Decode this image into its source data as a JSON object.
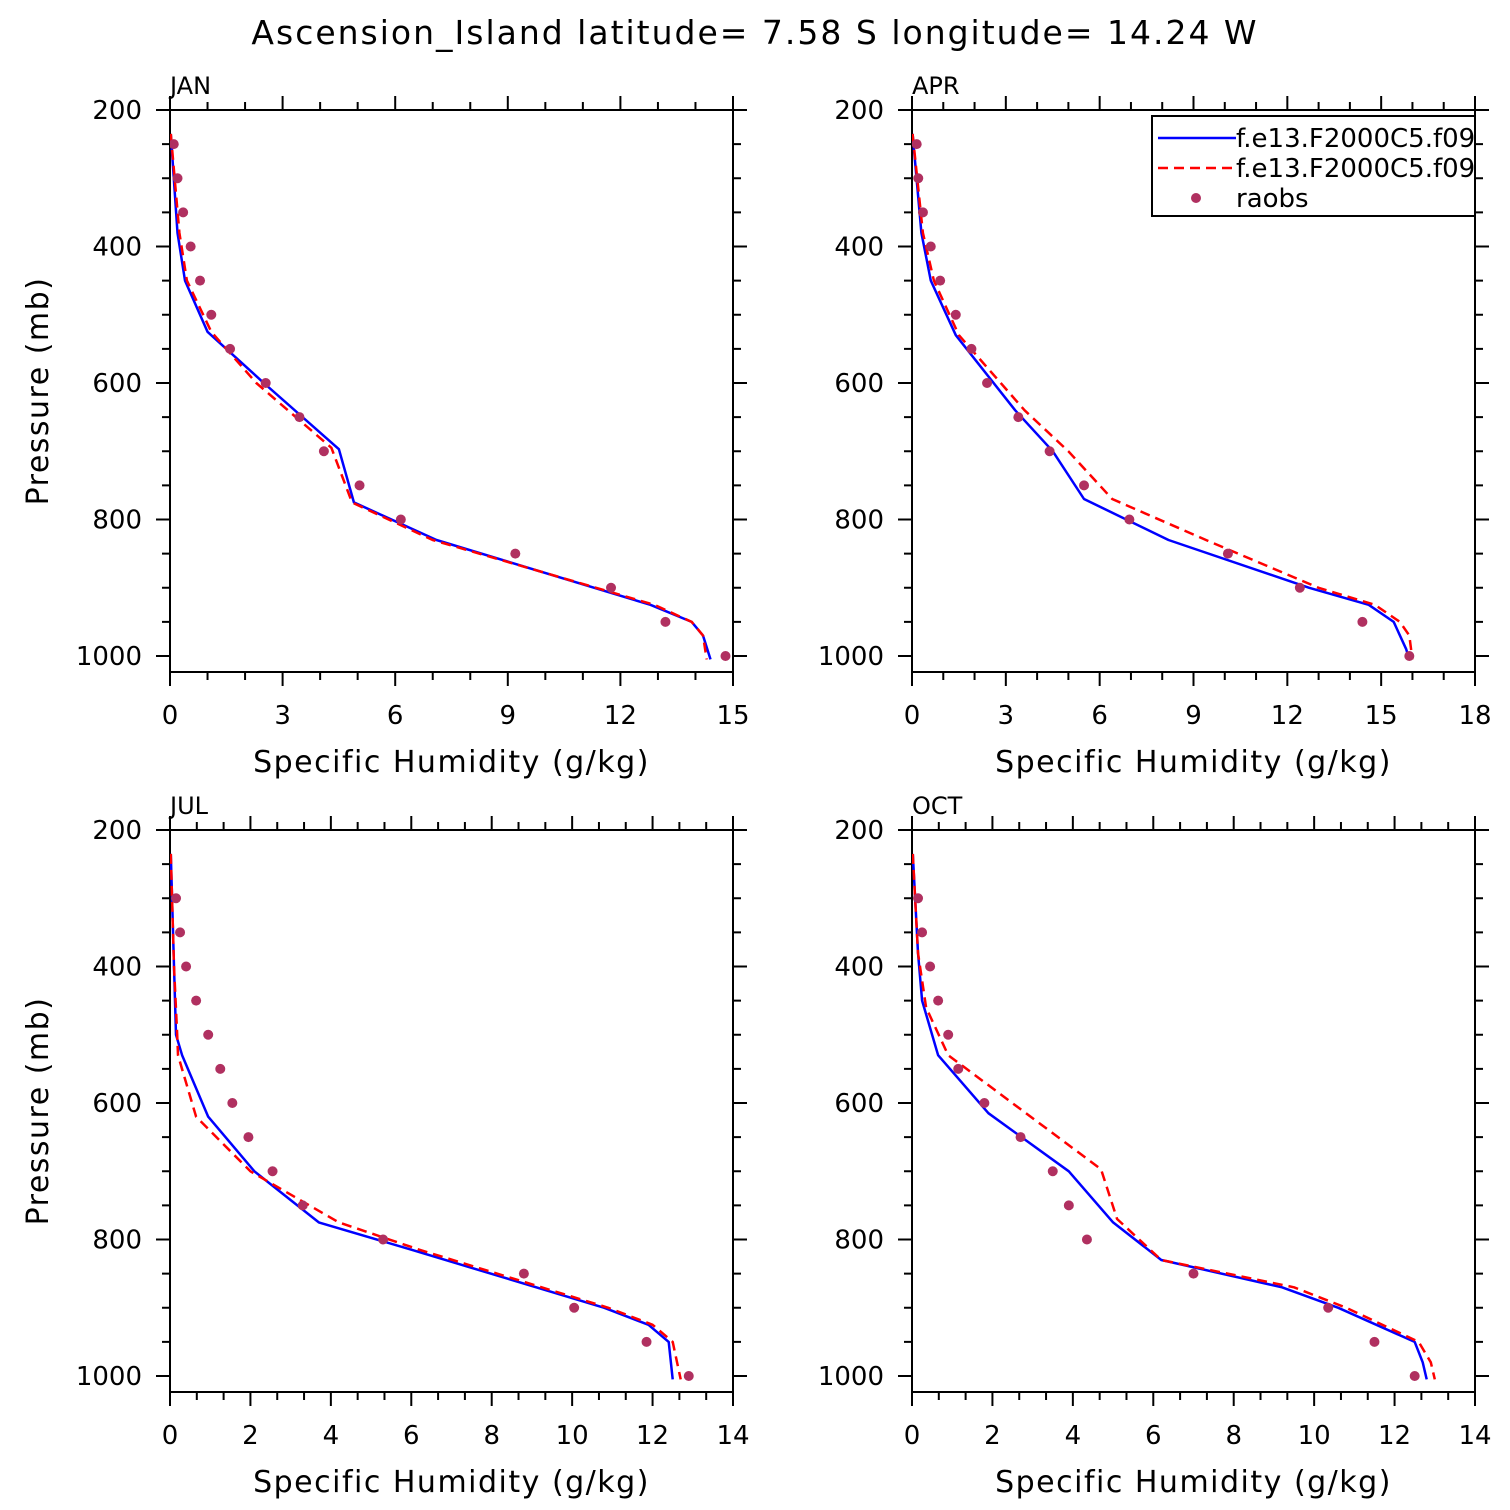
{
  "title": "Ascension_Island  latitude= 7.58 S longitude= 14.24 W",
  "colors": {
    "model1": "#0000ff",
    "model2": "#ff0000",
    "obs": "#b03060"
  },
  "legend": {
    "entries": [
      {
        "label": "f.e13.F2000C5.f09",
        "style": "solid",
        "color": "#0000ff"
      },
      {
        "label": "f.e13.F2000C5.f09",
        "style": "dashed",
        "color": "#ff0000"
      },
      {
        "label": "raobs",
        "style": "marker",
        "color": "#b03060"
      }
    ]
  },
  "chart_data": [
    {
      "type": "line",
      "panel": "JAN",
      "xlabel": "Specific Humidity (g/kg)",
      "ylabel": "Pressure (mb)",
      "xlim": [
        0,
        15
      ],
      "xticks": [
        0,
        3,
        6,
        9,
        12,
        15
      ],
      "ylim": [
        200,
        1000
      ],
      "yticks": [
        200,
        400,
        600,
        800,
        1000
      ],
      "series": [
        {
          "name": "f.e13.F2000C5.f09 (solid)",
          "style": "solid",
          "points": [
            [
              0.02,
              235
            ],
            [
              0.2,
              380
            ],
            [
              0.4,
              450
            ],
            [
              1.0,
              525
            ],
            [
              2.5,
              600
            ],
            [
              4.5,
              697
            ],
            [
              4.9,
              775
            ],
            [
              7.1,
              830
            ],
            [
              12.8,
              925
            ],
            [
              13.9,
              950
            ],
            [
              14.2,
              970
            ],
            [
              14.4,
              1005
            ]
          ]
        },
        {
          "name": "f.e13.F2000C5.f09 (dashed)",
          "style": "dashed",
          "points": [
            [
              0.02,
              235
            ],
            [
              0.25,
              380
            ],
            [
              0.45,
              450
            ],
            [
              1.1,
              525
            ],
            [
              2.3,
              600
            ],
            [
              4.3,
              695
            ],
            [
              4.85,
              775
            ],
            [
              7.0,
              830
            ],
            [
              12.9,
              925
            ],
            [
              13.9,
              950
            ],
            [
              14.2,
              970
            ],
            [
              14.3,
              1005
            ]
          ]
        },
        {
          "name": "raobs",
          "style": "marker",
          "points": [
            [
              0.1,
              250
            ],
            [
              0.2,
              300
            ],
            [
              0.35,
              350
            ],
            [
              0.55,
              400
            ],
            [
              0.8,
              450
            ],
            [
              1.1,
              500
            ],
            [
              1.6,
              550
            ],
            [
              2.55,
              600
            ],
            [
              3.45,
              650
            ],
            [
              4.1,
              700
            ],
            [
              5.05,
              750
            ],
            [
              6.15,
              800
            ],
            [
              9.2,
              850
            ],
            [
              11.75,
              900
            ],
            [
              13.2,
              950
            ],
            [
              14.8,
              1000
            ]
          ]
        }
      ]
    },
    {
      "type": "line",
      "panel": "APR",
      "xlabel": "Specific Humidity (g/kg)",
      "ylabel": "",
      "xlim": [
        0,
        18
      ],
      "xticks": [
        0,
        3,
        6,
        9,
        12,
        15,
        18
      ],
      "ylim": [
        200,
        1000
      ],
      "yticks": [
        200,
        400,
        600,
        800,
        1000
      ],
      "series": [
        {
          "name": "f.e13.F2000C5.f09 (solid)",
          "style": "solid",
          "points": [
            [
              0.02,
              235
            ],
            [
              0.3,
              380
            ],
            [
              0.6,
              450
            ],
            [
              1.4,
              530
            ],
            [
              3.3,
              640
            ],
            [
              4.5,
              700
            ],
            [
              5.5,
              770
            ],
            [
              8.2,
              830
            ],
            [
              12.7,
              900
            ],
            [
              14.6,
              925
            ],
            [
              15.4,
              950
            ],
            [
              15.8,
              990
            ],
            [
              15.9,
              1005
            ]
          ]
        },
        {
          "name": "f.e13.F2000C5.f09 (dashed)",
          "style": "dashed",
          "points": [
            [
              0.02,
              235
            ],
            [
              0.35,
              380
            ],
            [
              0.7,
              450
            ],
            [
              1.5,
              530
            ],
            [
              3.6,
              640
            ],
            [
              5.0,
              700
            ],
            [
              6.4,
              770
            ],
            [
              9.4,
              830
            ],
            [
              13.0,
              900
            ],
            [
              14.8,
              925
            ],
            [
              15.6,
              950
            ],
            [
              15.9,
              970
            ],
            [
              16.0,
              1005
            ]
          ]
        },
        {
          "name": "raobs",
          "style": "marker",
          "points": [
            [
              0.15,
              250
            ],
            [
              0.2,
              300
            ],
            [
              0.35,
              350
            ],
            [
              0.6,
              400
            ],
            [
              0.9,
              450
            ],
            [
              1.4,
              500
            ],
            [
              1.9,
              550
            ],
            [
              2.4,
              600
            ],
            [
              3.4,
              650
            ],
            [
              4.4,
              700
            ],
            [
              5.5,
              750
            ],
            [
              6.95,
              800
            ],
            [
              10.1,
              850
            ],
            [
              12.4,
              900
            ],
            [
              14.4,
              950
            ],
            [
              15.9,
              1000
            ]
          ]
        }
      ]
    },
    {
      "type": "line",
      "panel": "JUL",
      "xlabel": "Specific Humidity (g/kg)",
      "ylabel": "Pressure (mb)",
      "xlim": [
        0,
        14
      ],
      "xticks": [
        0,
        2,
        4,
        6,
        8,
        10,
        12,
        14
      ],
      "ylim": [
        200,
        1000
      ],
      "yticks": [
        200,
        400,
        600,
        800,
        1000
      ],
      "series": [
        {
          "name": "f.e13.F2000C5.f09 (solid)",
          "style": "solid",
          "points": [
            [
              0.02,
              235
            ],
            [
              0.1,
              400
            ],
            [
              0.15,
              500
            ],
            [
              0.3,
              530
            ],
            [
              0.95,
              620
            ],
            [
              2.1,
              700
            ],
            [
              3.7,
              775
            ],
            [
              6.0,
              815
            ],
            [
              10.8,
              900
            ],
            [
              11.9,
              925
            ],
            [
              12.4,
              950
            ],
            [
              12.5,
              1005
            ]
          ]
        },
        {
          "name": "f.e13.F2000C5.f09 (dashed)",
          "style": "dashed",
          "points": [
            [
              0.02,
              235
            ],
            [
              0.1,
              400
            ],
            [
              0.18,
              500
            ],
            [
              0.2,
              530
            ],
            [
              0.65,
              620
            ],
            [
              2.0,
              700
            ],
            [
              4.2,
              775
            ],
            [
              6.2,
              815
            ],
            [
              10.9,
              900
            ],
            [
              12.0,
              925
            ],
            [
              12.5,
              950
            ],
            [
              12.7,
              1005
            ]
          ]
        },
        {
          "name": "raobs",
          "style": "marker",
          "points": [
            [
              0.15,
              300
            ],
            [
              0.25,
              350
            ],
            [
              0.4,
              400
            ],
            [
              0.65,
              450
            ],
            [
              0.95,
              500
            ],
            [
              1.25,
              550
            ],
            [
              1.55,
              600
            ],
            [
              1.95,
              650
            ],
            [
              2.55,
              700
            ],
            [
              3.3,
              750
            ],
            [
              5.3,
              800
            ],
            [
              8.8,
              850
            ],
            [
              10.05,
              900
            ],
            [
              11.85,
              950
            ],
            [
              12.9,
              1000
            ]
          ]
        }
      ]
    },
    {
      "type": "line",
      "panel": "OCT",
      "xlabel": "Specific Humidity (g/kg)",
      "ylabel": "",
      "xlim": [
        0,
        14
      ],
      "xticks": [
        0,
        2,
        4,
        6,
        8,
        10,
        12,
        14
      ],
      "ylim": [
        200,
        1000
      ],
      "yticks": [
        200,
        400,
        600,
        800,
        1000
      ],
      "series": [
        {
          "name": "f.e13.F2000C5.f09 (solid)",
          "style": "solid",
          "points": [
            [
              0.02,
              235
            ],
            [
              0.15,
              380
            ],
            [
              0.25,
              450
            ],
            [
              0.65,
              530
            ],
            [
              1.9,
              615
            ],
            [
              3.9,
              700
            ],
            [
              5.0,
              775
            ],
            [
              6.2,
              830
            ],
            [
              9.2,
              870
            ],
            [
              10.6,
              900
            ],
            [
              12.5,
              950
            ],
            [
              12.7,
              980
            ],
            [
              12.8,
              1005
            ]
          ]
        },
        {
          "name": "f.e13.F2000C5.f09 (dashed)",
          "style": "dashed",
          "points": [
            [
              0.02,
              235
            ],
            [
              0.15,
              380
            ],
            [
              0.35,
              460
            ],
            [
              0.9,
              530
            ],
            [
              4.7,
              697
            ],
            [
              5.1,
              770
            ],
            [
              6.2,
              830
            ],
            [
              9.5,
              870
            ],
            [
              10.8,
              900
            ],
            [
              12.6,
              950
            ],
            [
              12.9,
              980
            ],
            [
              13.0,
              1005
            ]
          ]
        },
        {
          "name": "raobs",
          "style": "marker",
          "points": [
            [
              0.15,
              300
            ],
            [
              0.25,
              350
            ],
            [
              0.45,
              400
            ],
            [
              0.65,
              450
            ],
            [
              0.9,
              500
            ],
            [
              1.15,
              550
            ],
            [
              1.8,
              600
            ],
            [
              2.7,
              650
            ],
            [
              3.5,
              700
            ],
            [
              3.9,
              750
            ],
            [
              4.35,
              800
            ],
            [
              7.0,
              850
            ],
            [
              10.35,
              900
            ],
            [
              11.5,
              950
            ],
            [
              12.5,
              1000
            ]
          ]
        }
      ]
    }
  ]
}
